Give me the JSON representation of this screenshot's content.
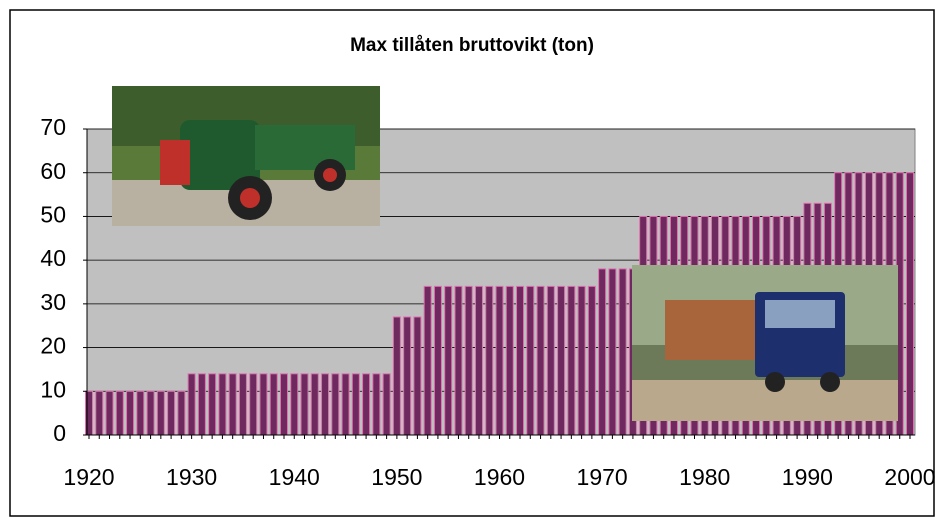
{
  "chart_data": {
    "type": "bar",
    "title": "Max tillåten bruttovikt (ton)",
    "x": [
      1920,
      1921,
      1922,
      1923,
      1924,
      1925,
      1926,
      1927,
      1928,
      1929,
      1930,
      1931,
      1932,
      1933,
      1934,
      1935,
      1936,
      1937,
      1938,
      1939,
      1940,
      1941,
      1942,
      1943,
      1944,
      1945,
      1946,
      1947,
      1948,
      1949,
      1950,
      1951,
      1952,
      1953,
      1954,
      1955,
      1956,
      1957,
      1958,
      1959,
      1960,
      1961,
      1962,
      1963,
      1964,
      1965,
      1966,
      1967,
      1968,
      1969,
      1970,
      1971,
      1972,
      1973,
      1974,
      1975,
      1976,
      1977,
      1978,
      1979,
      1980,
      1981,
      1982,
      1983,
      1984,
      1985,
      1986,
      1987,
      1988,
      1989,
      1990,
      1991,
      1992,
      1993,
      1994,
      1995,
      1996,
      1997,
      1998,
      1999,
      2000
    ],
    "values": [
      10,
      10,
      10,
      10,
      10,
      10,
      10,
      10,
      10,
      10,
      14,
      14,
      14,
      14,
      14,
      14,
      14,
      14,
      14,
      14,
      14,
      14,
      14,
      14,
      14,
      14,
      14,
      14,
      14,
      14,
      27,
      27,
      27,
      34,
      34,
      34,
      34,
      34,
      34,
      34,
      34,
      34,
      34,
      34,
      34,
      34,
      34,
      34,
      34,
      34,
      38,
      38,
      38,
      38,
      50,
      50,
      50,
      50,
      50,
      50,
      50,
      50,
      50,
      50,
      50,
      50,
      50,
      50,
      50,
      50,
      53,
      53,
      53,
      60,
      60,
      60,
      60,
      60,
      60,
      60,
      60
    ],
    "color": "#6e2a5e",
    "xlim": [
      1920,
      2000
    ],
    "xticks": [
      1920,
      1930,
      1940,
      1950,
      1960,
      1970,
      1980,
      1990,
      2000
    ],
    "ylim": [
      0,
      70
    ],
    "yticks": [
      0,
      10,
      20,
      30,
      40,
      50,
      60,
      70
    ],
    "grid": true
  }
}
